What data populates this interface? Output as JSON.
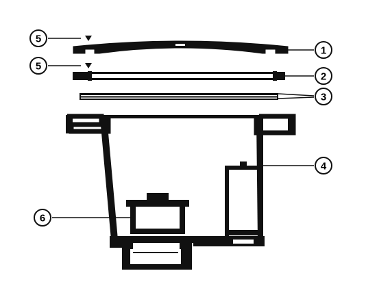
{
  "colors": {
    "ink": "#111111",
    "paper": "#ffffff",
    "gap": "#e8e8e8"
  },
  "callouts": {
    "c1": "1",
    "c2": "2",
    "c3": "3",
    "c4": "4",
    "c5_top": "5",
    "c5_bottom": "5",
    "c6": "6"
  }
}
